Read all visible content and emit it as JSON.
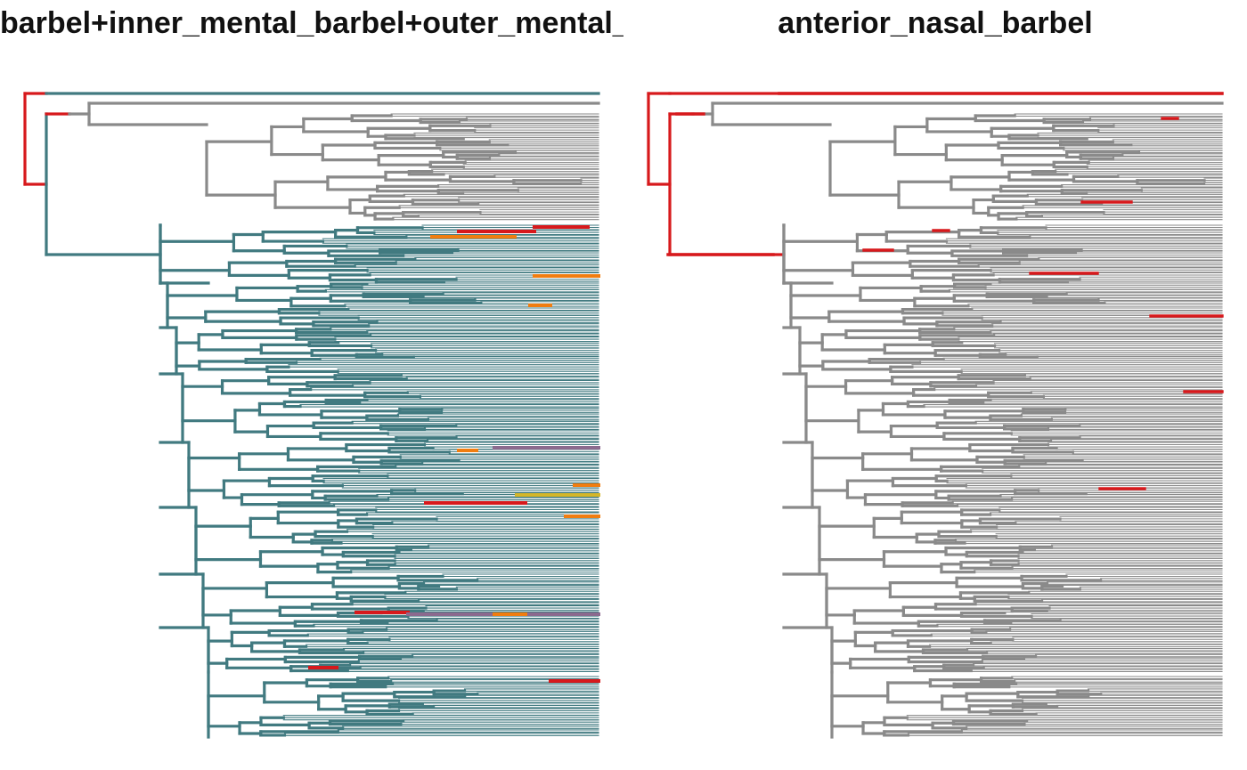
{
  "panels": [
    {
      "title": "barbel+inner_mental_barbel+outer_mental_barbel",
      "base_color": "#417a80",
      "outgroup_color": "#8a8a8a",
      "root_color": "#d7191c",
      "colors": {
        "gray": "#8a8a8a",
        "teal": "#417a80",
        "red": "#d7191c",
        "orange": "#f07d10",
        "purple": "#8b6a8e",
        "yellow": "#d4b62a"
      }
    },
    {
      "title": "anterior_nasal_barbel",
      "base_color": "#8a8a8a",
      "outgroup_color": "#8a8a8a",
      "root_color": "#d7191c",
      "colors": {
        "gray": "#8a8a8a",
        "red": "#d7191c"
      }
    }
  ]
}
